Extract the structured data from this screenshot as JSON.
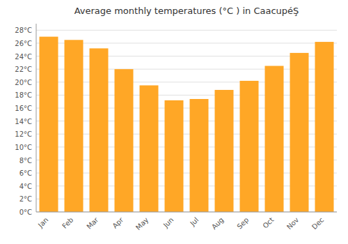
{
  "chart_data": {
    "type": "bar",
    "title": "Average monthly temperatures (°C ) in CaacupéŞ",
    "categories": [
      "Jan",
      "Feb",
      "Mar",
      "Apr",
      "May",
      "Jun",
      "Jul",
      "Aug",
      "Sep",
      "Oct",
      "Nov",
      "Dec"
    ],
    "values": [
      27.0,
      26.5,
      25.2,
      22.0,
      19.5,
      17.2,
      17.4,
      18.8,
      20.2,
      22.5,
      24.5,
      26.2
    ],
    "color": "#FFA726",
    "ylim": [
      0,
      29
    ],
    "yticks": [
      {
        "value": 0,
        "label": "0°C"
      },
      {
        "value": 2,
        "label": "2°C"
      },
      {
        "value": 4,
        "label": "4°C"
      },
      {
        "value": 6,
        "label": "6°C"
      },
      {
        "value": 8,
        "label": "8°C"
      },
      {
        "value": 10,
        "label": "10°C"
      },
      {
        "value": 12,
        "label": "12°C"
      },
      {
        "value": 14,
        "label": "14°C"
      },
      {
        "value": 16,
        "label": "16°C"
      },
      {
        "value": 18,
        "label": "18°C"
      },
      {
        "value": 20,
        "label": "20°C"
      },
      {
        "value": 22,
        "label": "22°C"
      },
      {
        "value": 24,
        "label": "24°C"
      },
      {
        "value": 26,
        "label": "26°C"
      },
      {
        "value": 28,
        "label": "28°C"
      }
    ],
    "grid": true
  }
}
